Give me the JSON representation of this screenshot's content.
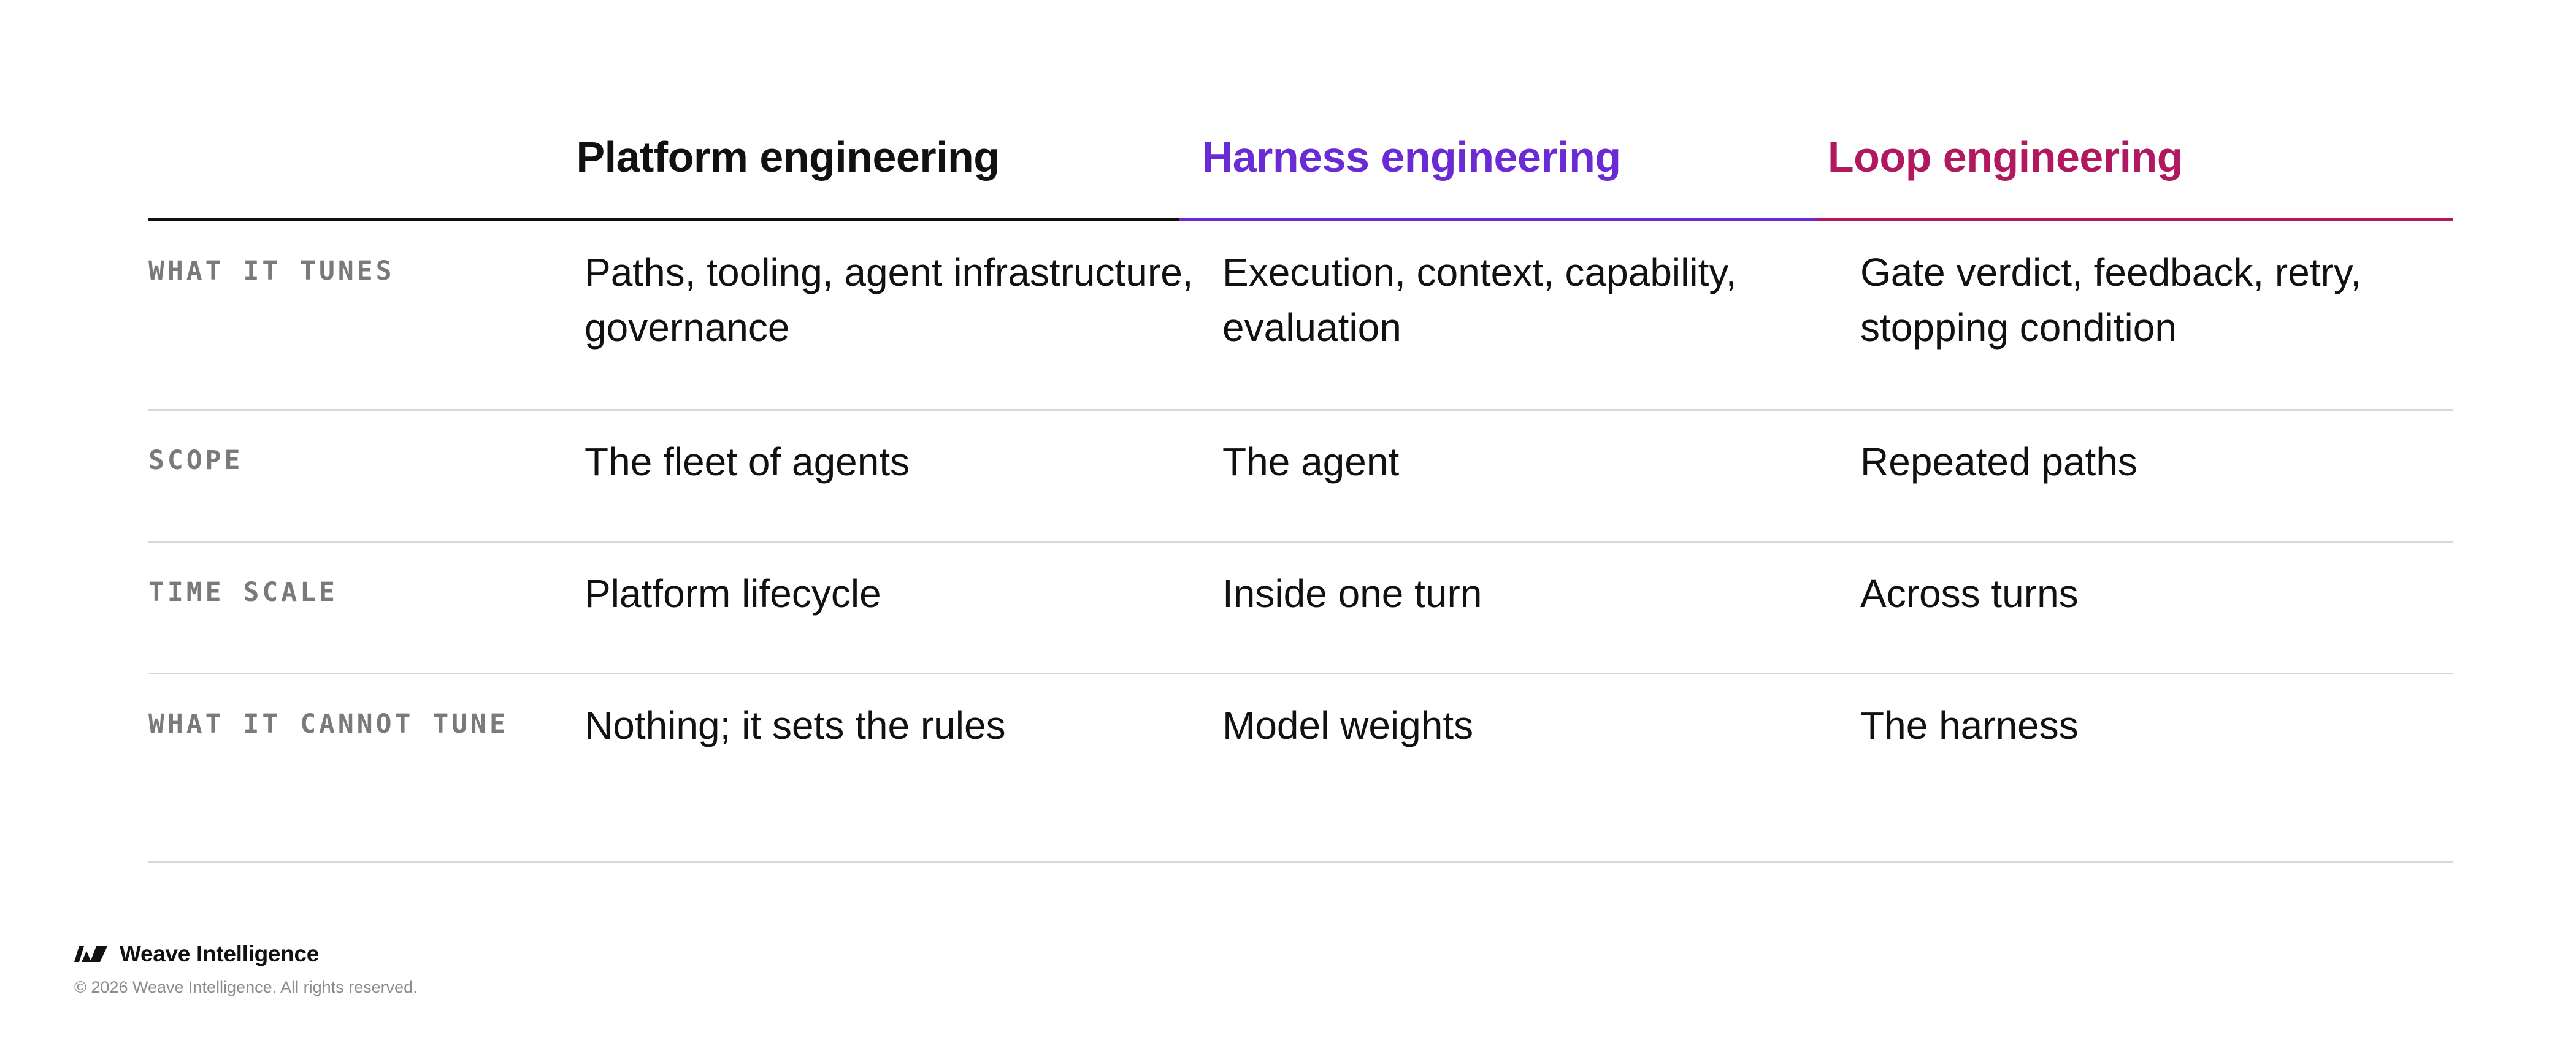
{
  "columns": [
    {
      "title": "Platform engineering",
      "color": "#111111"
    },
    {
      "title": "Harness engineering",
      "color": "#6a2bd4"
    },
    {
      "title": "Loop engineering",
      "color": "#b0195f"
    }
  ],
  "rows": [
    {
      "label": "WHAT IT TUNES",
      "cells": [
        "Paths, tooling, agent infrastructure, governance",
        "Execution, context, capability, evaluation",
        "Gate verdict, feedback, retry, stopping condition"
      ]
    },
    {
      "label": "SCOPE",
      "cells": [
        "The fleet of agents",
        "The agent",
        "Repeated paths"
      ]
    },
    {
      "label": "TIME SCALE",
      "cells": [
        "Platform lifecycle",
        "Inside one turn",
        "Across turns"
      ]
    },
    {
      "label": "WHAT IT CANNOT TUNE",
      "cells": [
        "Nothing; it sets the rules",
        "Model weights",
        "The harness"
      ]
    }
  ],
  "footer": {
    "brand_icon": "weave-logo-icon",
    "brand_name": "Weave Intelligence",
    "copyright": "© 2026 Weave Intelligence. All rights reserved."
  }
}
